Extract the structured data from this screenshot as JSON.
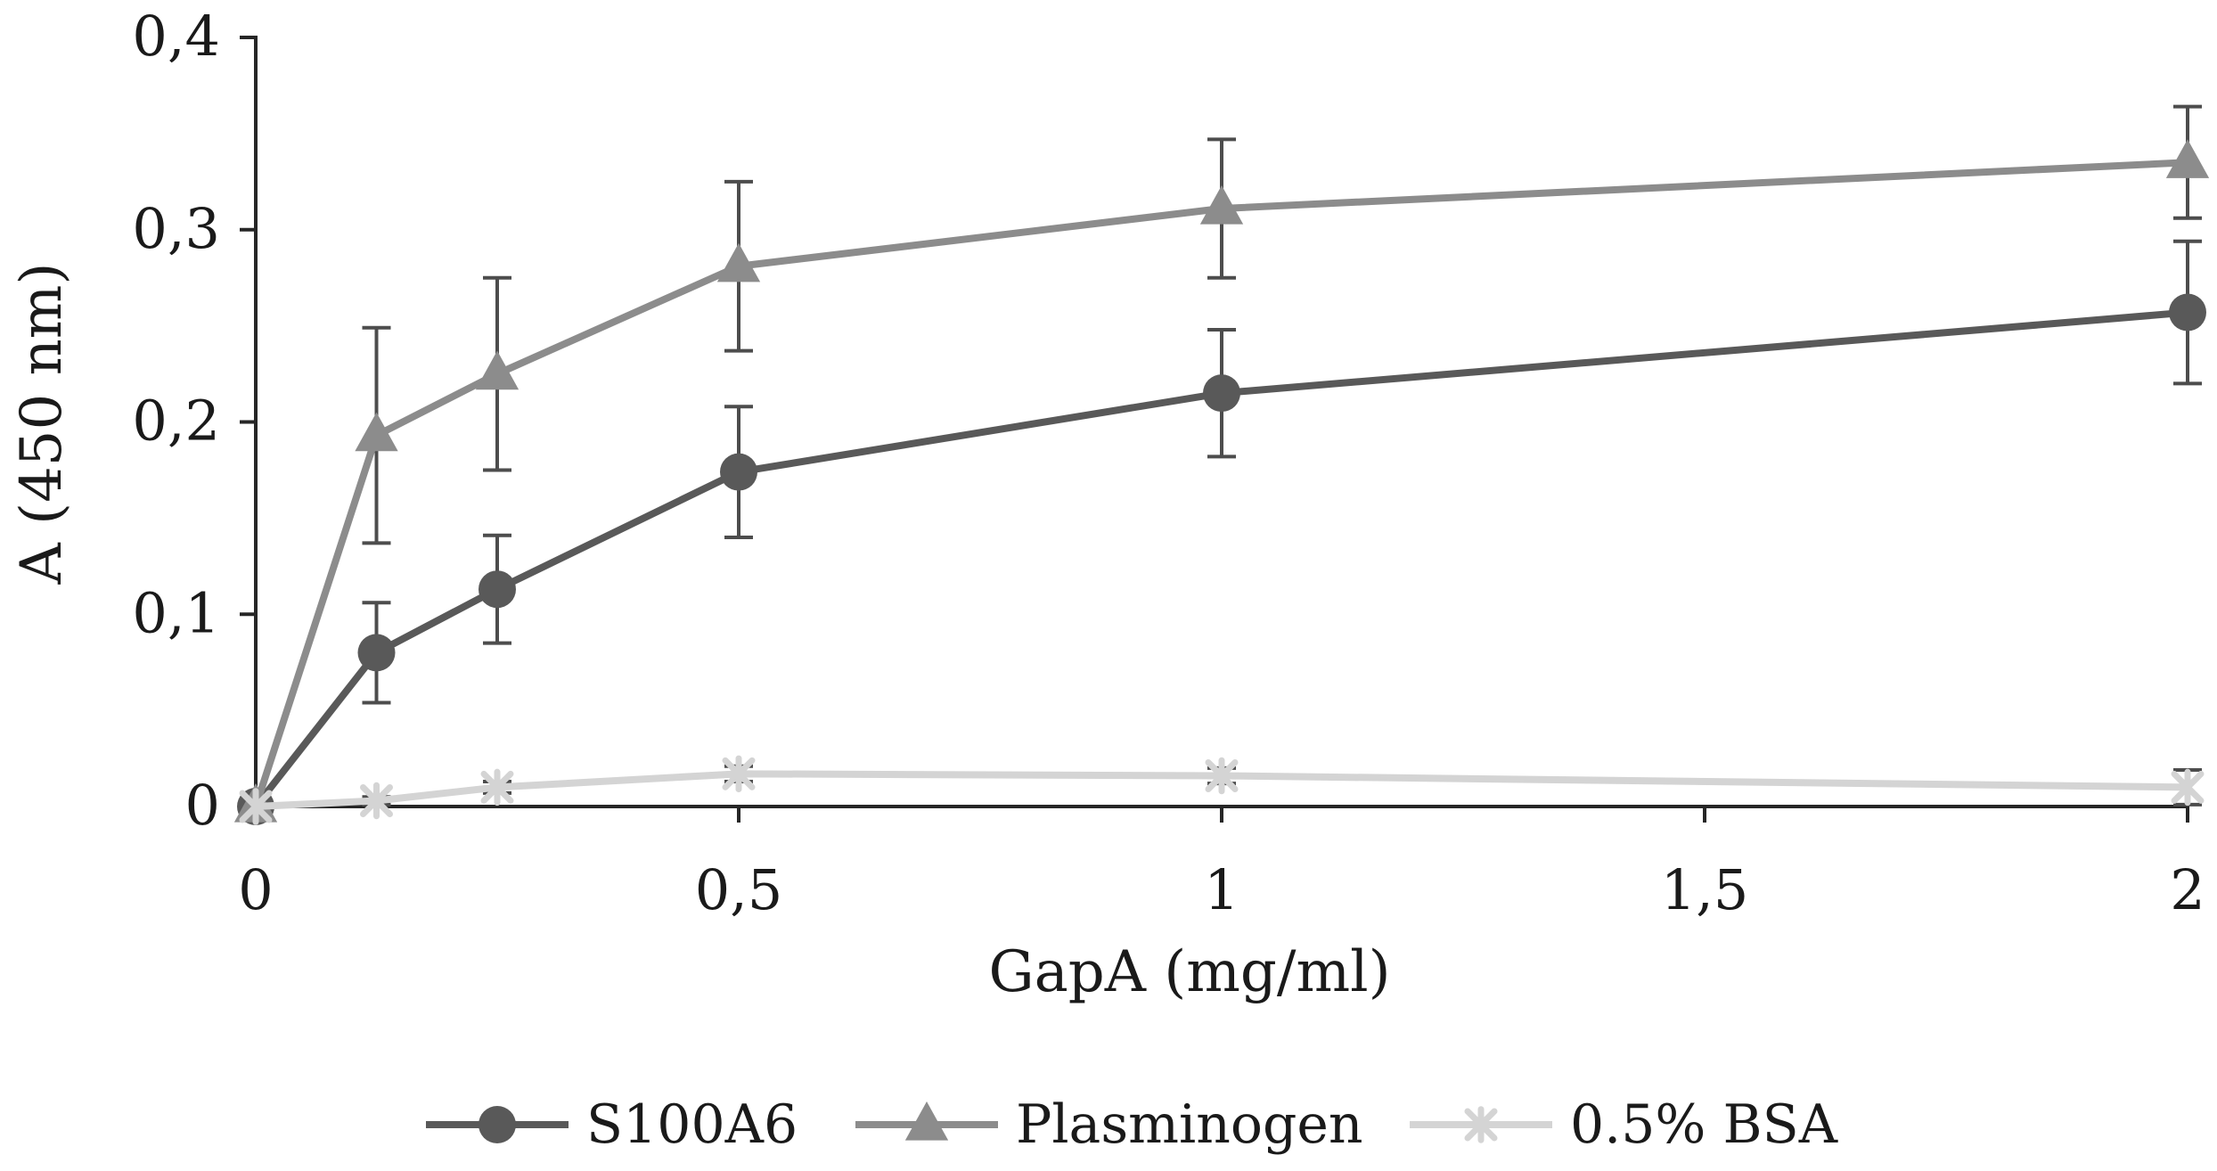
{
  "chart_data": {
    "type": "line",
    "title": "",
    "xlabel": "GapA (mg/ml)",
    "ylabel": "A (450 nm)",
    "xlim": [
      0,
      2
    ],
    "ylim": [
      0,
      0.4
    ],
    "x_ticks": [
      0,
      0.5,
      1,
      1.5,
      2
    ],
    "x_tick_labels": [
      "0",
      "0,5",
      "1",
      "1,5",
      "2"
    ],
    "y_ticks": [
      0,
      0.1,
      0.2,
      0.3,
      0.4
    ],
    "y_tick_labels": [
      "0",
      "0,1",
      "0,2",
      "0,3",
      "0,4"
    ],
    "grid": false,
    "legend_position": "bottom",
    "series": [
      {
        "name": "S100A6",
        "marker": "circle",
        "color": "#595959",
        "x": [
          0,
          0.125,
          0.25,
          0.5,
          1,
          2
        ],
        "y": [
          0,
          0.08,
          0.113,
          0.174,
          0.215,
          0.257
        ],
        "error": [
          0,
          0.026,
          0.028,
          0.034,
          0.033,
          0.037
        ]
      },
      {
        "name": "Plasminogen",
        "marker": "triangle",
        "color": "#8c8c8c",
        "x": [
          0,
          0.125,
          0.25,
          0.5,
          1,
          2
        ],
        "y": [
          0,
          0.193,
          0.225,
          0.281,
          0.311,
          0.335
        ],
        "error": [
          0,
          0.056,
          0.05,
          0.044,
          0.036,
          0.029
        ]
      },
      {
        "name": "0.5% BSA",
        "marker": "star",
        "color": "#d4d4d4",
        "x": [
          0,
          0.125,
          0.25,
          0.5,
          1,
          2
        ],
        "y": [
          0,
          0.003,
          0.01,
          0.017,
          0.016,
          0.01
        ],
        "error": [
          0,
          0.002,
          0.003,
          0.004,
          0.004,
          0.009
        ]
      }
    ]
  }
}
